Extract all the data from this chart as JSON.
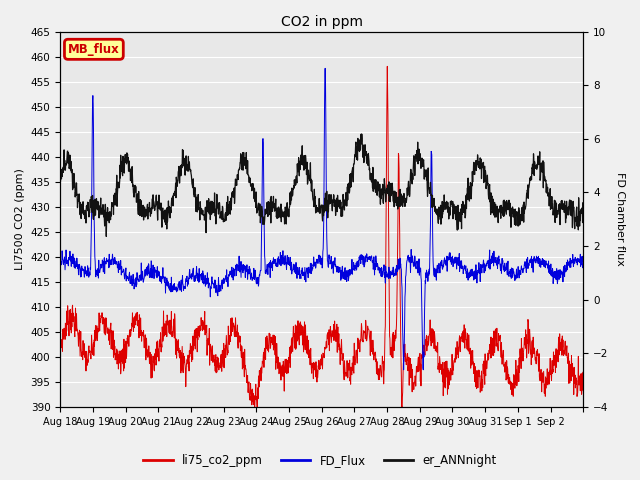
{
  "title": "CO2 in ppm",
  "ylabel_left": "LI7500 CO2 (ppm)",
  "ylabel_right": "FD Chamber flux",
  "ylim_left": [
    390,
    465
  ],
  "ylim_right": [
    -4,
    10
  ],
  "yticks_left": [
    390,
    395,
    400,
    405,
    410,
    415,
    420,
    425,
    430,
    435,
    440,
    445,
    450,
    455,
    460,
    465
  ],
  "yticks_right": [
    -4,
    -2,
    0,
    2,
    4,
    6,
    8,
    10
  ],
  "plot_bg_color": "#e8e8e8",
  "legend_label_box": "MB_flux",
  "legend_box_facecolor": "#ffff99",
  "legend_box_edgecolor": "#cc0000",
  "line_colors": {
    "li75_co2_ppm": "#dd0000",
    "FD_Flux": "#0000dd",
    "er_ANNnight": "#111111"
  },
  "n_points": 1600,
  "days": 16
}
